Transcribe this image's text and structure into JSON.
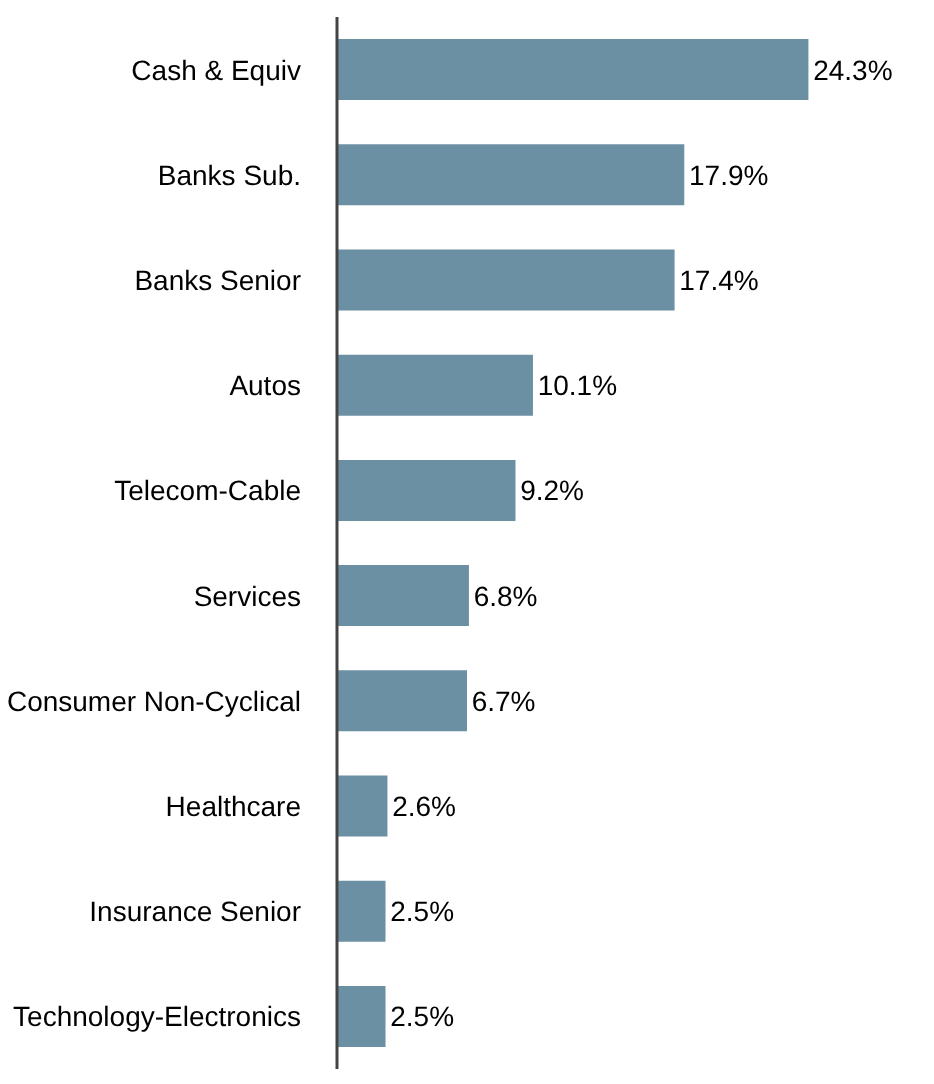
{
  "chart_data": {
    "type": "bar",
    "orientation": "horizontal",
    "categories": [
      "Cash & Equiv",
      "Banks Sub.",
      "Banks Senior",
      "Autos",
      "Telecom-Cable",
      "Services",
      "Consumer Non-Cyclical",
      "Healthcare",
      "Insurance Senior",
      "Technology-Electronics"
    ],
    "values": [
      24.3,
      17.9,
      17.4,
      10.1,
      9.2,
      6.8,
      6.7,
      2.6,
      2.5,
      2.5
    ],
    "value_labels": [
      "24.3%",
      "17.9%",
      "17.4%",
      "10.1%",
      "9.2%",
      "6.8%",
      "6.7%",
      "2.6%",
      "2.5%",
      "2.5%"
    ],
    "color": "#6b8fa3",
    "grid": false
  }
}
